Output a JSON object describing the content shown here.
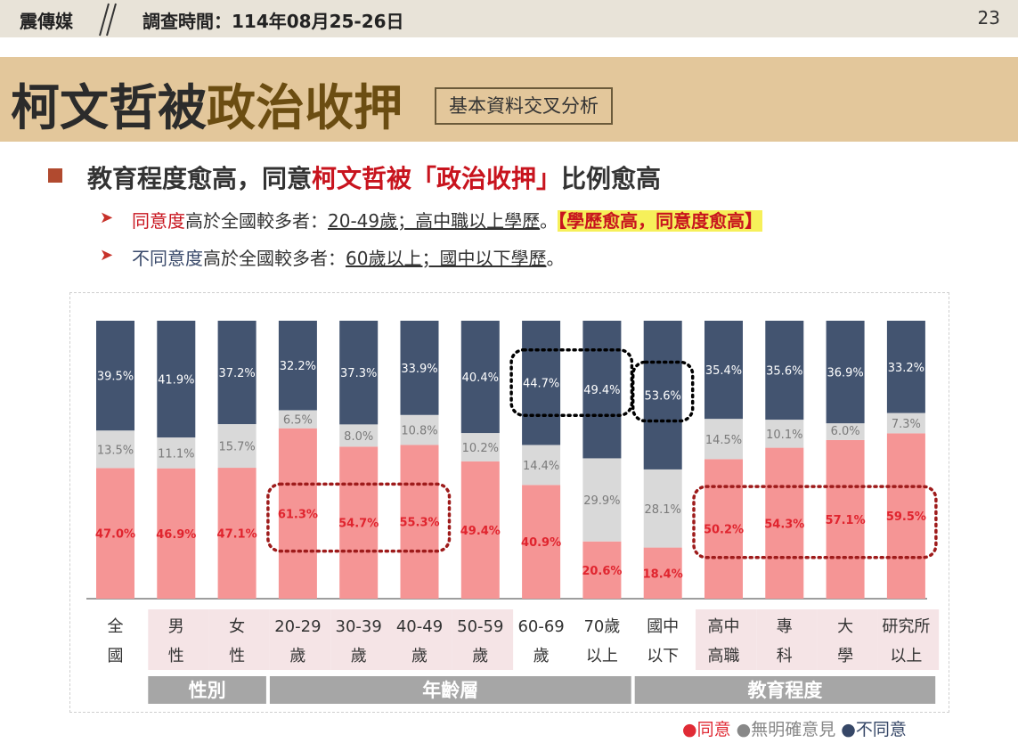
{
  "header": {
    "brand": "震傳媒",
    "survey_time": "調查時間：114年08月25-26日",
    "page_number": "23"
  },
  "title": {
    "part1": "柯文哲被",
    "part2": "政治收押",
    "tag": "基本資料交叉分析"
  },
  "bullet": {
    "prefix": "教育程度愈高，同意",
    "highlight": "柯文哲被「政治收押」",
    "suffix": "比例愈高"
  },
  "sub1": {
    "colored": "同意度",
    "text": "高於全國較多者：",
    "underlined": "20-49歲；高中職以上學歷",
    "end": "。",
    "highlight": "【學歷愈高，同意度愈高】"
  },
  "sub2": {
    "colored": "不同意度",
    "text": "高於全國較多者：",
    "underlined": "60歲以上；國中以下學歷",
    "end": "。"
  },
  "legend": {
    "agree": "●同意",
    "unknown": "●無明確意見",
    "disagree": "●不同意"
  },
  "colors": {
    "agree": "#f59595",
    "unknown": "#d9d9d9",
    "disagree": "#435470",
    "agree_label": "#e0242e",
    "unknown_label": "#7a7a7a",
    "disagree_label": "#ffffff",
    "category_shade": "#f5e4e6",
    "group_bar": "#a6a6a6",
    "dotted_navy": "#000000",
    "dotted_red": "#9e1b1b"
  },
  "chart_data": {
    "type": "bar",
    "stacked": true,
    "percent_stacked": true,
    "categories": [
      [
        "全",
        "國"
      ],
      [
        "男",
        "性"
      ],
      [
        "女",
        "性"
      ],
      [
        "20-29",
        "歲"
      ],
      [
        "30-39",
        "歲"
      ],
      [
        "40-49",
        "歲"
      ],
      [
        "50-59",
        "歲"
      ],
      [
        "60-69",
        "歲"
      ],
      [
        "70歲",
        "以上"
      ],
      [
        "國中",
        "以下"
      ],
      [
        "高中",
        "高職"
      ],
      [
        "專",
        "科"
      ],
      [
        "大",
        "學"
      ],
      [
        "研究所",
        "以上"
      ]
    ],
    "shaded_categories": [
      1,
      2,
      3,
      4,
      5,
      6,
      10,
      11,
      12,
      13
    ],
    "series": [
      {
        "name": "同意",
        "values": [
          47.0,
          46.9,
          47.1,
          61.3,
          54.7,
          55.3,
          49.4,
          40.9,
          20.6,
          18.4,
          50.2,
          54.3,
          57.1,
          59.5
        ]
      },
      {
        "name": "無明確意見",
        "values": [
          13.5,
          11.1,
          15.7,
          6.5,
          8.0,
          10.8,
          10.2,
          14.4,
          29.9,
          28.1,
          14.5,
          10.1,
          6.0,
          7.3
        ]
      },
      {
        "name": "不同意",
        "values": [
          39.5,
          41.9,
          37.2,
          32.2,
          37.3,
          33.9,
          40.4,
          44.7,
          49.4,
          53.6,
          35.4,
          35.6,
          36.9,
          33.2
        ]
      }
    ],
    "labels": {
      "同意": [
        "47.0%",
        "46.9%",
        "47.1%",
        "61.3%",
        "54.7%",
        "55.3%",
        "49.4%",
        "40.9%",
        "20.6%",
        "18.4%",
        "50.2%",
        "54.3%",
        "57.1%",
        "59.5%"
      ],
      "無明確意見": [
        "13.5%",
        "11.1%",
        "15.7%",
        "6.5%",
        "8.0%",
        "10.8%",
        "10.2%",
        "14.4%",
        "29.9%",
        "28.1%",
        "14.5%",
        "10.1%",
        "6.0%",
        "7.3%"
      ],
      "不同意": [
        "39.5%",
        "41.9%",
        "37.2%",
        "32.2%",
        "37.3%",
        "33.9%",
        "40.4%",
        "44.7%",
        "49.4%",
        "53.6%",
        "35.4%",
        "35.6%",
        "36.9%",
        "33.2%"
      ]
    },
    "groups": [
      {
        "name": "性別",
        "from": 1,
        "to": 2
      },
      {
        "name": "年齡層",
        "from": 3,
        "to": 8
      },
      {
        "name": "教育程度",
        "from": 9,
        "to": 13
      }
    ],
    "emphasis": [
      {
        "series": "不同意",
        "from": 7,
        "to": 8,
        "style": "black-dotted"
      },
      {
        "series": "不同意",
        "from": 9,
        "to": 9,
        "style": "black-dotted"
      },
      {
        "series": "同意",
        "from": 3,
        "to": 5,
        "style": "red-dotted"
      },
      {
        "series": "同意",
        "from": 10,
        "to": 13,
        "style": "red-dotted"
      }
    ],
    "ylim": [
      0,
      100
    ]
  }
}
